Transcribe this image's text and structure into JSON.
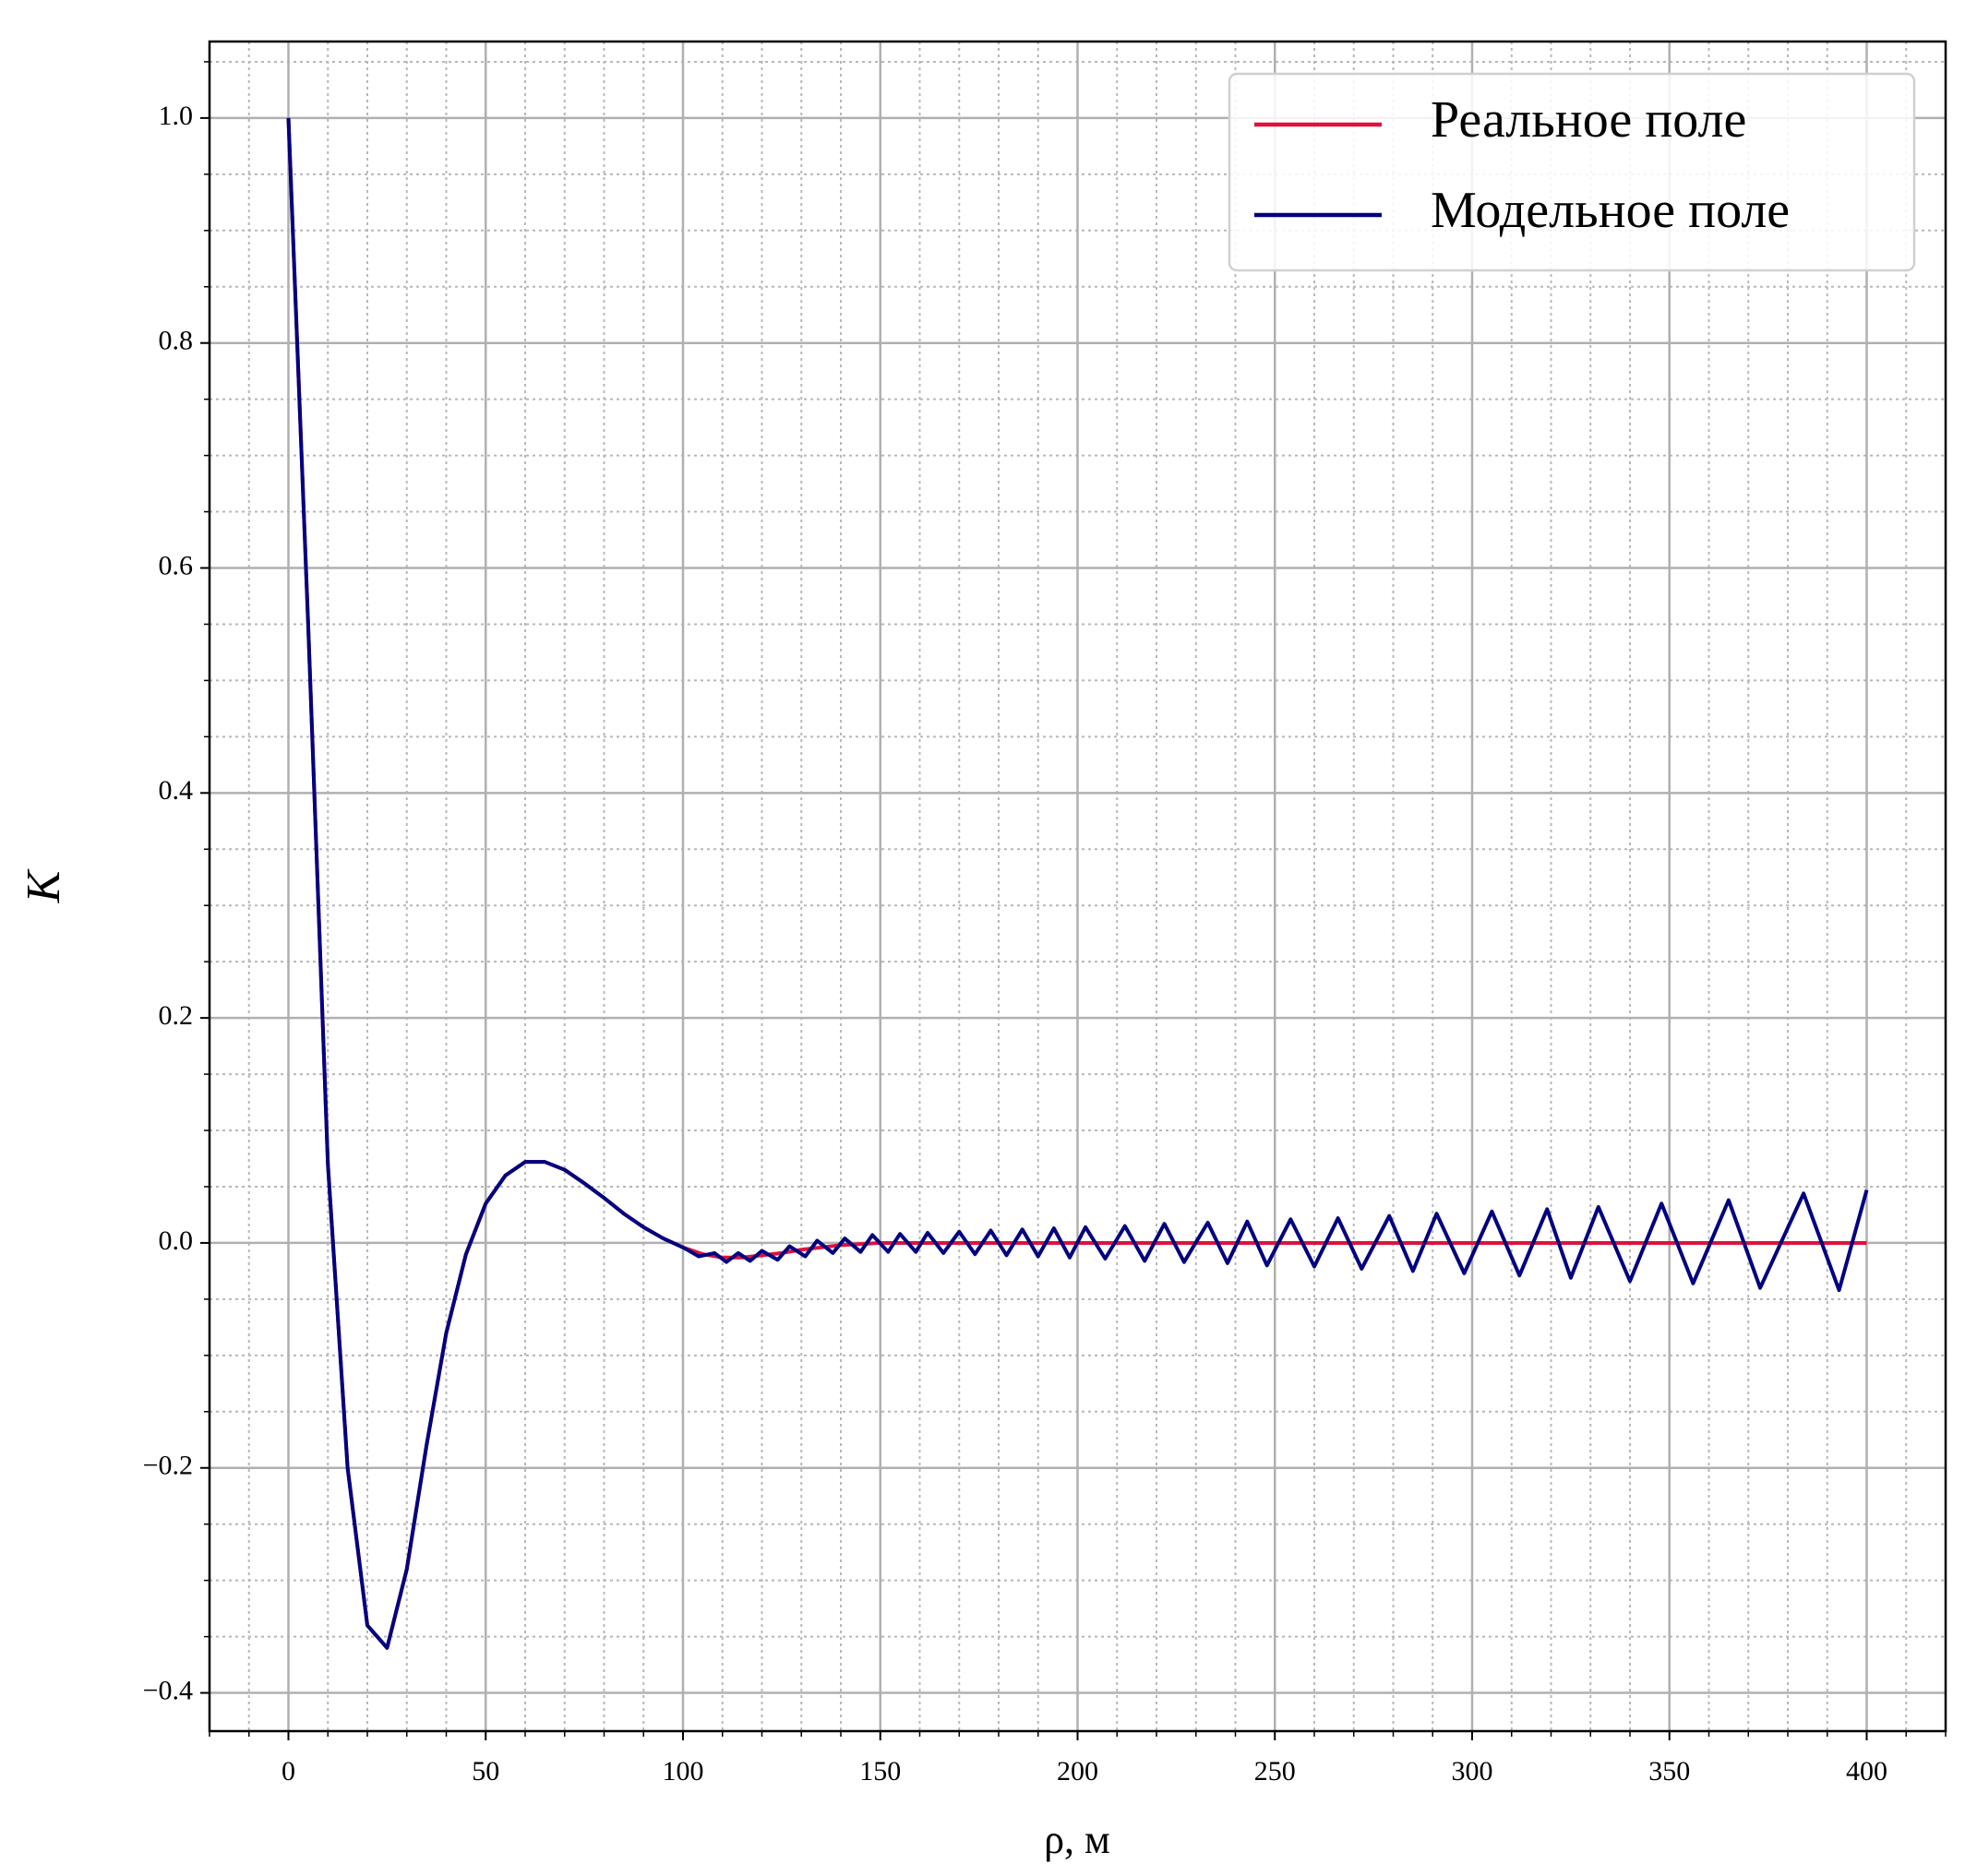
{
  "chart_data": {
    "type": "line",
    "xlabel": "ρ, м",
    "ylabel": "K",
    "xlim": [
      -20,
      420
    ],
    "ylim": [
      -0.434,
      1.068
    ],
    "xticks": [
      0,
      50,
      100,
      150,
      200,
      250,
      300,
      350,
      400
    ],
    "yticks": [
      {
        "value": -0.4,
        "label": "−0.4"
      },
      {
        "value": -0.2,
        "label": "−0.2"
      },
      {
        "value": 0,
        "label": "0.0"
      },
      0.2,
      0.4,
      0.6,
      0.8,
      {
        "value": 1,
        "label": "1.0"
      }
    ],
    "grid": true,
    "minor_grid": true,
    "minor_divisions": {
      "x": 5,
      "y": 4
    },
    "legend": "upper right",
    "series": [
      {
        "name": "Реальное поле",
        "color": "#dc143c",
        "x": [
          0,
          5,
          10,
          15,
          20,
          25,
          30,
          35,
          40,
          45,
          50,
          55,
          60,
          65,
          70,
          75,
          80,
          85,
          90,
          95,
          100,
          105,
          110,
          115,
          120,
          125,
          130,
          135,
          140,
          145,
          150,
          160,
          170,
          180,
          190,
          200,
          210,
          220,
          230,
          240,
          250,
          260,
          270,
          280,
          290,
          300,
          310,
          320,
          330,
          340,
          350,
          360,
          370,
          380,
          390,
          400
        ],
        "values": [
          1.0,
          0.55,
          0.07,
          -0.2,
          -0.34,
          -0.36,
          -0.29,
          -0.18,
          -0.08,
          -0.01,
          0.035,
          0.06,
          0.072,
          0.072,
          0.065,
          0.053,
          0.04,
          0.026,
          0.014,
          0.004,
          -0.004,
          -0.01,
          -0.013,
          -0.013,
          -0.011,
          -0.009,
          -0.006,
          -0.004,
          -0.002,
          -0.001,
          0,
          0,
          0,
          0,
          0,
          0,
          0,
          0,
          0,
          0,
          0,
          0,
          0,
          0,
          0,
          0,
          0,
          0,
          0,
          0,
          0,
          0,
          0,
          0,
          0,
          0
        ]
      },
      {
        "name": "Модельное поле",
        "color": "#000080",
        "x": [
          0,
          5,
          10,
          15,
          20,
          25,
          30,
          35,
          40,
          45,
          50,
          55,
          60,
          65,
          70,
          75,
          80,
          85,
          90,
          95,
          100,
          104,
          108,
          111,
          114,
          117,
          120,
          124,
          127,
          131,
          134,
          138,
          141,
          145,
          148,
          152,
          155,
          159,
          162,
          166,
          170,
          174,
          178,
          182,
          186,
          190,
          194,
          198,
          202,
          207,
          212,
          217,
          222,
          227,
          233,
          238,
          243,
          248,
          254,
          260,
          266,
          272,
          279,
          285,
          291,
          298,
          305,
          312,
          319,
          325,
          332,
          340,
          348,
          356,
          365,
          373,
          384,
          393,
          400
        ],
        "values": [
          1.0,
          0.55,
          0.07,
          -0.2,
          -0.34,
          -0.36,
          -0.29,
          -0.18,
          -0.08,
          -0.01,
          0.035,
          0.06,
          0.072,
          0.072,
          0.065,
          0.053,
          0.04,
          0.026,
          0.014,
          0.004,
          -0.004,
          -0.012,
          -0.009,
          -0.017,
          -0.009,
          -0.016,
          -0.007,
          -0.015,
          -0.003,
          -0.012,
          0.002,
          -0.009,
          0.004,
          -0.008,
          0.007,
          -0.008,
          0.008,
          -0.008,
          0.009,
          -0.009,
          0.01,
          -0.01,
          0.011,
          -0.011,
          0.012,
          -0.012,
          0.013,
          -0.013,
          0.014,
          -0.014,
          0.015,
          -0.016,
          0.017,
          -0.017,
          0.018,
          -0.018,
          0.019,
          -0.02,
          0.021,
          -0.021,
          0.022,
          -0.023,
          0.024,
          -0.025,
          0.026,
          -0.027,
          0.028,
          -0.029,
          0.03,
          -0.031,
          0.032,
          -0.034,
          0.035,
          -0.036,
          0.038,
          -0.04,
          0.044,
          -0.042,
          0.047
        ]
      }
    ]
  }
}
